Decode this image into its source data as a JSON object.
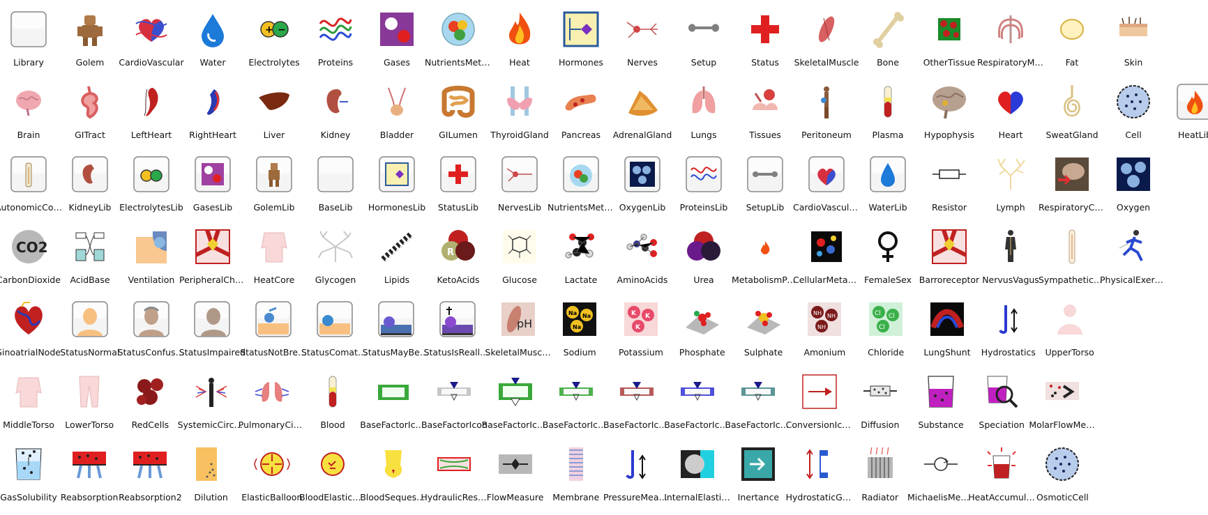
{
  "library": {
    "rows": [
      [
        {
          "label": "Library",
          "icon": "library-icon",
          "kind": "frame"
        },
        {
          "label": "Golem",
          "icon": "golem-icon",
          "kind": "golem"
        },
        {
          "label": "CardioVascular",
          "icon": "cardiovascular-icon",
          "kind": "heart"
        },
        {
          "label": "Water",
          "icon": "water-drop-icon",
          "kind": "drop"
        },
        {
          "label": "Electrolytes",
          "icon": "electrolytes-icon",
          "kind": "ions"
        },
        {
          "label": "Proteins",
          "icon": "proteins-icon",
          "kind": "squiggle"
        },
        {
          "label": "Gases",
          "icon": "gases-icon",
          "kind": "gases"
        },
        {
          "label": "NutrientsMetab...",
          "icon": "nutrients-plate-icon",
          "kind": "plate"
        },
        {
          "label": "Heat",
          "icon": "flame-icon",
          "kind": "flame"
        },
        {
          "label": "Hormones",
          "icon": "hormones-icon",
          "kind": "hormone"
        },
        {
          "label": "Nerves",
          "icon": "neuron-icon",
          "kind": "neuron"
        },
        {
          "label": "Setup",
          "icon": "wrench-icon",
          "kind": "wrench"
        },
        {
          "label": "Status",
          "icon": "red-cross-icon",
          "kind": "cross"
        },
        {
          "label": "SkeletalMuscle",
          "icon": "muscle-icon",
          "kind": "muscle"
        },
        {
          "label": "Bone",
          "icon": "bone-icon",
          "kind": "bone"
        },
        {
          "label": "OtherTissue",
          "icon": "tissue-icon",
          "kind": "tissue"
        },
        {
          "label": "RespiratoryMu...",
          "icon": "ribcage-icon",
          "kind": "ribs"
        },
        {
          "label": "Fat",
          "icon": "fat-cell-icon",
          "kind": "fat"
        },
        {
          "label": "Skin",
          "icon": "skin-icon",
          "kind": "skin"
        }
      ],
      [
        {
          "label": "Brain",
          "icon": "brain-icon",
          "kind": "brain"
        },
        {
          "label": "GITract",
          "icon": "gi-tract-icon",
          "kind": "gi"
        },
        {
          "label": "LeftHeart",
          "icon": "left-heart-icon",
          "kind": "lheart"
        },
        {
          "label": "RightHeart",
          "icon": "right-heart-icon",
          "kind": "rheart"
        },
        {
          "label": "Liver",
          "icon": "liver-icon",
          "kind": "liver"
        },
        {
          "label": "Kidney",
          "icon": "kidney-icon",
          "kind": "kidney"
        },
        {
          "label": "Bladder",
          "icon": "bladder-icon",
          "kind": "bladder"
        },
        {
          "label": "GILumen",
          "icon": "intestine-icon",
          "kind": "intestine"
        },
        {
          "label": "ThyroidGland",
          "icon": "thyroid-icon",
          "kind": "thyroid"
        },
        {
          "label": "Pancreas",
          "icon": "pancreas-icon",
          "kind": "pancreas"
        },
        {
          "label": "AdrenalGland",
          "icon": "adrenal-icon",
          "kind": "adrenal"
        },
        {
          "label": "Lungs",
          "icon": "lungs-icon",
          "kind": "lungs"
        },
        {
          "label": "Tissues",
          "icon": "tissues-icon",
          "kind": "tissues"
        },
        {
          "label": "Peritoneum",
          "icon": "peritoneum-icon",
          "kind": "figure"
        },
        {
          "label": "Plasma",
          "icon": "plasma-tube-icon",
          "kind": "tube"
        },
        {
          "label": "Hypophysis",
          "icon": "hypophysis-icon",
          "kind": "brainbig"
        },
        {
          "label": "Heart",
          "icon": "heart-icon",
          "kind": "heartsimple"
        },
        {
          "label": "SweatGland",
          "icon": "sweat-gland-icon",
          "kind": "sweat"
        },
        {
          "label": "Cell",
          "icon": "cell-icon",
          "kind": "cell"
        },
        {
          "label": "HeatLib",
          "icon": "heat-lib-icon",
          "kind": "frameflame"
        }
      ],
      [
        {
          "label": "AutonomicCont...",
          "icon": "autonomic-lib-icon",
          "kind": "framefigure"
        },
        {
          "label": "KidneyLib",
          "icon": "kidney-lib-icon",
          "kind": "framekidney"
        },
        {
          "label": "ElectrolytesLib",
          "icon": "electrolytes-lib-icon",
          "kind": "frameions"
        },
        {
          "label": "GasesLib",
          "icon": "gases-lib-icon",
          "kind": "framegases"
        },
        {
          "label": "GolemLib",
          "icon": "golem-lib-icon",
          "kind": "framegolem"
        },
        {
          "label": "BaseLib",
          "icon": "base-lib-icon",
          "kind": "frame"
        },
        {
          "label": "HormonesLib",
          "icon": "hormones-lib-icon",
          "kind": "framehormone"
        },
        {
          "label": "StatusLib",
          "icon": "status-lib-icon",
          "kind": "framecross"
        },
        {
          "label": "NervesLib",
          "icon": "nerves-lib-icon",
          "kind": "frameneuron"
        },
        {
          "label": "NutrientsMetab...",
          "icon": "nutrients-lib-icon",
          "kind": "frameplate"
        },
        {
          "label": "OxygenLib",
          "icon": "oxygen-lib-icon",
          "kind": "frameoxygen"
        },
        {
          "label": "ProteinsLib",
          "icon": "proteins-lib-icon",
          "kind": "framesquiggle"
        },
        {
          "label": "SetupLib",
          "icon": "setup-lib-icon",
          "kind": "framewrench"
        },
        {
          "label": "CardioVascular...",
          "icon": "cardiovascular-lib-icon",
          "kind": "frameheart"
        },
        {
          "label": "WaterLib",
          "icon": "water-lib-icon",
          "kind": "framedrop"
        },
        {
          "label": "Resistor",
          "icon": "resistor-icon",
          "kind": "resistor"
        },
        {
          "label": "Lymph",
          "icon": "lymph-icon",
          "kind": "lymph"
        },
        {
          "label": "RespiratoryCen...",
          "icon": "respiratory-center-icon",
          "kind": "respcenter"
        },
        {
          "label": "Oxygen",
          "icon": "oxygen-icon",
          "kind": "oxygen"
        }
      ],
      [
        {
          "label": "CarbonDioxide",
          "icon": "co2-icon",
          "kind": "co2",
          "text": "CO2"
        },
        {
          "label": "AcidBase",
          "icon": "acid-base-icon",
          "kind": "acidbase"
        },
        {
          "label": "Ventilation",
          "icon": "ventilation-icon",
          "kind": "ventilation"
        },
        {
          "label": "PeripheralChe...",
          "icon": "peripheral-chemo-icon",
          "kind": "chemo"
        },
        {
          "label": "HeatCore",
          "icon": "heat-core-icon",
          "kind": "torso"
        },
        {
          "label": "Glycogen",
          "icon": "glycogen-icon",
          "kind": "glycogen"
        },
        {
          "label": "Lipids",
          "icon": "lipids-icon",
          "kind": "lipids"
        },
        {
          "label": "KetoAcids",
          "icon": "ketoacids-icon",
          "kind": "keto",
          "text": "R"
        },
        {
          "label": "Glucose",
          "icon": "glucose-icon",
          "kind": "glucose"
        },
        {
          "label": "Lactate",
          "icon": "lactate-icon",
          "kind": "molecule"
        },
        {
          "label": "AminoAcids",
          "icon": "amino-acids-icon",
          "kind": "amino"
        },
        {
          "label": "Urea",
          "icon": "urea-icon",
          "kind": "urea"
        },
        {
          "label": "MetabolismPart",
          "icon": "small-flame-icon",
          "kind": "smallflame"
        },
        {
          "label": "CellularMetabo...",
          "icon": "cellular-metabolism-icon",
          "kind": "cellmetab"
        },
        {
          "label": "FemaleSex",
          "icon": "female-symbol-icon",
          "kind": "female"
        },
        {
          "label": "Barroreceptor",
          "icon": "baroreceptor-icon",
          "kind": "chemo"
        },
        {
          "label": "NervusVagus",
          "icon": "nervus-vagus-icon",
          "kind": "figuredark"
        },
        {
          "label": "SympatheticNe...",
          "icon": "sympathetic-icon",
          "kind": "tall"
        },
        {
          "label": "PhysicalExercise",
          "icon": "runner-icon",
          "kind": "runner"
        }
      ],
      [
        {
          "label": "SinoatrialNode",
          "icon": "sinoatrial-node-icon",
          "kind": "saheart"
        },
        {
          "label": "StatusNormal",
          "icon": "status-normal-icon",
          "kind": "face1"
        },
        {
          "label": "StatusConfused",
          "icon": "status-confused-icon",
          "kind": "face2"
        },
        {
          "label": "StatusImpaired",
          "icon": "status-impaired-icon",
          "kind": "face3"
        },
        {
          "label": "StatusNotBreat...",
          "icon": "status-not-breathing-icon",
          "kind": "lying1"
        },
        {
          "label": "StatusComatose",
          "icon": "status-comatose-icon",
          "kind": "lying2"
        },
        {
          "label": "StatusMayBeD...",
          "icon": "status-may-be-dead-icon",
          "kind": "lying3"
        },
        {
          "label": "StatusIsReally...",
          "icon": "status-is-really-dead-icon",
          "kind": "lying4"
        },
        {
          "label": "SkeletalMuscle...",
          "icon": "skeletal-muscle-ph-icon",
          "kind": "ph",
          "text": "pH"
        },
        {
          "label": "Sodium",
          "icon": "sodium-icon",
          "kind": "sodium",
          "text": "Na"
        },
        {
          "label": "Potassium",
          "icon": "potassium-icon",
          "kind": "potassium",
          "text": "K"
        },
        {
          "label": "Phosphate",
          "icon": "phosphate-icon",
          "kind": "phosphate"
        },
        {
          "label": "Sulphate",
          "icon": "sulphate-icon",
          "kind": "sulphate"
        },
        {
          "label": "Amonium",
          "icon": "ammonium-icon",
          "kind": "ammonium",
          "text": "NH"
        },
        {
          "label": "Chloride",
          "icon": "chloride-icon",
          "kind": "chloride",
          "text": "Cl"
        },
        {
          "label": "LungShunt",
          "icon": "lung-shunt-icon",
          "kind": "lungshunt"
        },
        {
          "label": "Hydrostatics",
          "icon": "hydrostatics-icon",
          "kind": "hydro"
        },
        {
          "label": "UpperTorso",
          "icon": "upper-torso-icon",
          "kind": "uppertorso"
        }
      ],
      [
        {
          "label": "MiddleTorso",
          "icon": "middle-torso-icon",
          "kind": "torso"
        },
        {
          "label": "LowerTorso",
          "icon": "lower-torso-icon",
          "kind": "legs"
        },
        {
          "label": "RedCells",
          "icon": "red-cells-icon",
          "kind": "redcells"
        },
        {
          "label": "SystemicCircul...",
          "icon": "systemic-circulation-icon",
          "kind": "systemic"
        },
        {
          "label": "PulmonaryCirc...",
          "icon": "pulmonary-circulation-icon",
          "kind": "pulmonary"
        },
        {
          "label": "Blood",
          "icon": "blood-tube-icon",
          "kind": "tube"
        },
        {
          "label": "BaseFactorIcon0",
          "icon": "base-factor-0-icon",
          "kind": "bf0"
        },
        {
          "label": "BaseFactorIcon",
          "icon": "base-factor-icon",
          "kind": "bf",
          "color": "#c0c0c0"
        },
        {
          "label": "BaseFactorIcon2",
          "icon": "base-factor-2-icon",
          "kind": "bf2"
        },
        {
          "label": "BaseFactorIcon3",
          "icon": "base-factor-3-icon",
          "kind": "bf",
          "color": "#3aa83a"
        },
        {
          "label": "BaseFactorIcon4",
          "icon": "base-factor-4-icon",
          "kind": "bf",
          "color": "#b04848"
        },
        {
          "label": "BaseFactorIcon5",
          "icon": "base-factor-5-icon",
          "kind": "bf",
          "color": "#3c3cd8"
        },
        {
          "label": "BaseFactorIcon6",
          "icon": "base-factor-6-icon",
          "kind": "bf",
          "color": "#4a8a8a"
        },
        {
          "label": "ConversionIcon",
          "icon": "conversion-icon",
          "kind": "conversion"
        },
        {
          "label": "Diffusion",
          "icon": "diffusion-icon",
          "kind": "diffusion"
        },
        {
          "label": "Substance",
          "icon": "substance-beaker-icon",
          "kind": "beaker"
        },
        {
          "label": "Speciation",
          "icon": "speciation-icon",
          "kind": "speciation"
        },
        {
          "label": "MolarFlowMea...",
          "icon": "molar-flow-measure-icon",
          "kind": "molarflow"
        }
      ],
      [
        {
          "label": "GasSolubility",
          "icon": "gas-solubility-icon",
          "kind": "solubility"
        },
        {
          "label": "Reabsorption",
          "icon": "reabsorption-icon",
          "kind": "reabs"
        },
        {
          "label": "Reabsorption2",
          "icon": "reabsorption-2-icon",
          "kind": "reabs"
        },
        {
          "label": "Dilution",
          "icon": "dilution-icon",
          "kind": "dilution"
        },
        {
          "label": "ElasticBalloon",
          "icon": "elastic-balloon-icon",
          "kind": "balloon"
        },
        {
          "label": "BloodElasticCo...",
          "icon": "blood-elastic-icon",
          "kind": "balloon2"
        },
        {
          "label": "BloodSequeste...",
          "icon": "blood-sequestration-icon",
          "kind": "sequester"
        },
        {
          "label": "HydraulicResistor",
          "icon": "hydraulic-resistor-icon",
          "kind": "hydres"
        },
        {
          "label": "FlowMeasure",
          "icon": "flow-measure-icon",
          "kind": "flowmeasure"
        },
        {
          "label": "Membrane",
          "icon": "membrane-icon",
          "kind": "membrane"
        },
        {
          "label": "PressureMeasure",
          "icon": "pressure-measure-icon",
          "kind": "pressure"
        },
        {
          "label": "InternalElasticB...",
          "icon": "internal-elastic-icon",
          "kind": "internal"
        },
        {
          "label": "Inertance",
          "icon": "inertance-icon",
          "kind": "inertance"
        },
        {
          "label": "HydrostaticGra...",
          "icon": "hydrostatic-gradient-icon",
          "kind": "hydgrad"
        },
        {
          "label": "Radiator",
          "icon": "radiator-icon",
          "kind": "radiator"
        },
        {
          "label": "MichaelisMenten",
          "icon": "michaelis-menten-icon",
          "kind": "michaelis"
        },
        {
          "label": "HeatAccumulat...",
          "icon": "heat-accumulator-icon",
          "kind": "heatacc"
        },
        {
          "label": "OsmoticCell",
          "icon": "osmotic-cell-icon",
          "kind": "cell"
        }
      ]
    ]
  }
}
